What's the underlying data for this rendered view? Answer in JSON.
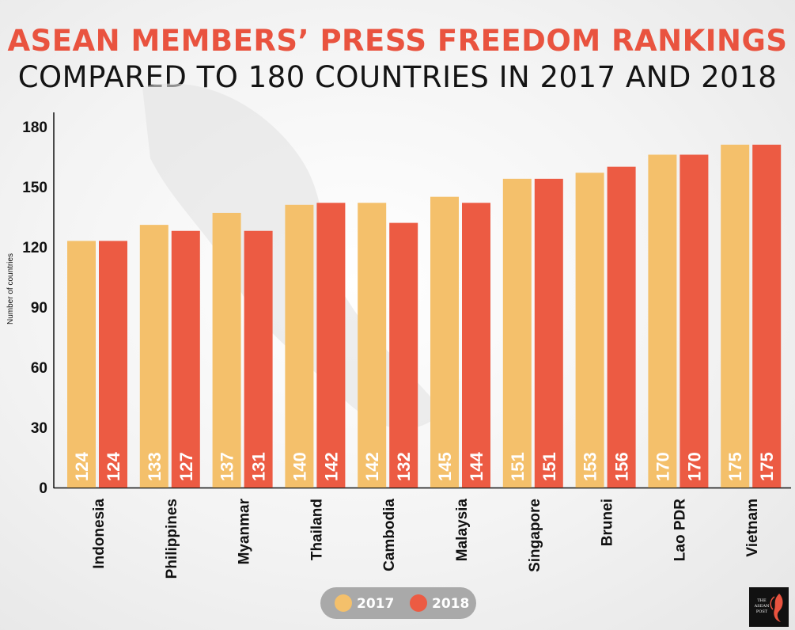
{
  "title_line1": "ASEAN MEMBERS’ PRESS FREEDOM RANKINGS",
  "title_line2": "COMPARED TO 180 COUNTRIES IN 2017 AND 2018",
  "colors": {
    "s2017": "#f4c06b",
    "s2018": "#ec5b43",
    "title_accent": "#e9533f",
    "legend_bg": "#a9a9a9"
  },
  "logo": {
    "text": "THE ASEAN POST",
    "icon": "phoenix-icon"
  },
  "chart_data": {
    "type": "bar",
    "categories": [
      "Indonesia",
      "Philippines",
      "Myanmar",
      "Thailand",
      "Cambodia",
      "Malaysia",
      "Singapore",
      "Brunei",
      "Lao PDR",
      "Vietnam"
    ],
    "series": [
      {
        "name": "2017",
        "values": [
          124,
          133,
          137,
          140,
          142,
          145,
          151,
          153,
          170,
          175
        ]
      },
      {
        "name": "2018",
        "values": [
          124,
          127,
          131,
          142,
          132,
          144,
          151,
          156,
          170,
          175
        ]
      }
    ],
    "bar_heights_note_values_read_from_axis": [
      [
        123,
        131,
        137,
        141,
        142,
        145,
        154,
        157,
        166,
        171
      ],
      [
        123,
        128,
        128,
        142,
        132,
        142,
        154,
        160,
        166,
        171
      ]
    ],
    "ylabel": "Number of countries",
    "xlabel": "",
    "ylim": [
      0,
      180
    ],
    "yticks": [
      0,
      30,
      60,
      90,
      120,
      150,
      180
    ],
    "legend": {
      "position": "bottom-center",
      "entries": [
        "2017",
        "2018"
      ]
    }
  }
}
